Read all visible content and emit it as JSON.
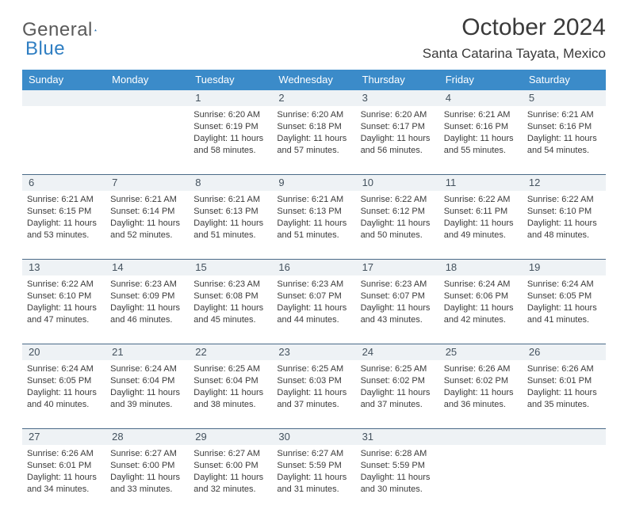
{
  "brand": {
    "part1": "General",
    "part2": "Blue",
    "color1": "#5a5a5a",
    "color2": "#2f7ec2"
  },
  "title": "October 2024",
  "location": "Santa Catarina Tayata, Mexico",
  "header_bg": "#3b8bc9",
  "header_fg": "#ffffff",
  "daynum_bg": "#eef2f5",
  "rule_color": "#4a6a88",
  "day_names": [
    "Sunday",
    "Monday",
    "Tuesday",
    "Wednesday",
    "Thursday",
    "Friday",
    "Saturday"
  ],
  "weeks": [
    {
      "nums": [
        "",
        "",
        "1",
        "2",
        "3",
        "4",
        "5"
      ],
      "cells": [
        null,
        null,
        {
          "sunrise": "Sunrise: 6:20 AM",
          "sunset": "Sunset: 6:19 PM",
          "daylight": "Daylight: 11 hours and 58 minutes."
        },
        {
          "sunrise": "Sunrise: 6:20 AM",
          "sunset": "Sunset: 6:18 PM",
          "daylight": "Daylight: 11 hours and 57 minutes."
        },
        {
          "sunrise": "Sunrise: 6:20 AM",
          "sunset": "Sunset: 6:17 PM",
          "daylight": "Daylight: 11 hours and 56 minutes."
        },
        {
          "sunrise": "Sunrise: 6:21 AM",
          "sunset": "Sunset: 6:16 PM",
          "daylight": "Daylight: 11 hours and 55 minutes."
        },
        {
          "sunrise": "Sunrise: 6:21 AM",
          "sunset": "Sunset: 6:16 PM",
          "daylight": "Daylight: 11 hours and 54 minutes."
        }
      ]
    },
    {
      "nums": [
        "6",
        "7",
        "8",
        "9",
        "10",
        "11",
        "12"
      ],
      "cells": [
        {
          "sunrise": "Sunrise: 6:21 AM",
          "sunset": "Sunset: 6:15 PM",
          "daylight": "Daylight: 11 hours and 53 minutes."
        },
        {
          "sunrise": "Sunrise: 6:21 AM",
          "sunset": "Sunset: 6:14 PM",
          "daylight": "Daylight: 11 hours and 52 minutes."
        },
        {
          "sunrise": "Sunrise: 6:21 AM",
          "sunset": "Sunset: 6:13 PM",
          "daylight": "Daylight: 11 hours and 51 minutes."
        },
        {
          "sunrise": "Sunrise: 6:21 AM",
          "sunset": "Sunset: 6:13 PM",
          "daylight": "Daylight: 11 hours and 51 minutes."
        },
        {
          "sunrise": "Sunrise: 6:22 AM",
          "sunset": "Sunset: 6:12 PM",
          "daylight": "Daylight: 11 hours and 50 minutes."
        },
        {
          "sunrise": "Sunrise: 6:22 AM",
          "sunset": "Sunset: 6:11 PM",
          "daylight": "Daylight: 11 hours and 49 minutes."
        },
        {
          "sunrise": "Sunrise: 6:22 AM",
          "sunset": "Sunset: 6:10 PM",
          "daylight": "Daylight: 11 hours and 48 minutes."
        }
      ]
    },
    {
      "nums": [
        "13",
        "14",
        "15",
        "16",
        "17",
        "18",
        "19"
      ],
      "cells": [
        {
          "sunrise": "Sunrise: 6:22 AM",
          "sunset": "Sunset: 6:10 PM",
          "daylight": "Daylight: 11 hours and 47 minutes."
        },
        {
          "sunrise": "Sunrise: 6:23 AM",
          "sunset": "Sunset: 6:09 PM",
          "daylight": "Daylight: 11 hours and 46 minutes."
        },
        {
          "sunrise": "Sunrise: 6:23 AM",
          "sunset": "Sunset: 6:08 PM",
          "daylight": "Daylight: 11 hours and 45 minutes."
        },
        {
          "sunrise": "Sunrise: 6:23 AM",
          "sunset": "Sunset: 6:07 PM",
          "daylight": "Daylight: 11 hours and 44 minutes."
        },
        {
          "sunrise": "Sunrise: 6:23 AM",
          "sunset": "Sunset: 6:07 PM",
          "daylight": "Daylight: 11 hours and 43 minutes."
        },
        {
          "sunrise": "Sunrise: 6:24 AM",
          "sunset": "Sunset: 6:06 PM",
          "daylight": "Daylight: 11 hours and 42 minutes."
        },
        {
          "sunrise": "Sunrise: 6:24 AM",
          "sunset": "Sunset: 6:05 PM",
          "daylight": "Daylight: 11 hours and 41 minutes."
        }
      ]
    },
    {
      "nums": [
        "20",
        "21",
        "22",
        "23",
        "24",
        "25",
        "26"
      ],
      "cells": [
        {
          "sunrise": "Sunrise: 6:24 AM",
          "sunset": "Sunset: 6:05 PM",
          "daylight": "Daylight: 11 hours and 40 minutes."
        },
        {
          "sunrise": "Sunrise: 6:24 AM",
          "sunset": "Sunset: 6:04 PM",
          "daylight": "Daylight: 11 hours and 39 minutes."
        },
        {
          "sunrise": "Sunrise: 6:25 AM",
          "sunset": "Sunset: 6:04 PM",
          "daylight": "Daylight: 11 hours and 38 minutes."
        },
        {
          "sunrise": "Sunrise: 6:25 AM",
          "sunset": "Sunset: 6:03 PM",
          "daylight": "Daylight: 11 hours and 37 minutes."
        },
        {
          "sunrise": "Sunrise: 6:25 AM",
          "sunset": "Sunset: 6:02 PM",
          "daylight": "Daylight: 11 hours and 37 minutes."
        },
        {
          "sunrise": "Sunrise: 6:26 AM",
          "sunset": "Sunset: 6:02 PM",
          "daylight": "Daylight: 11 hours and 36 minutes."
        },
        {
          "sunrise": "Sunrise: 6:26 AM",
          "sunset": "Sunset: 6:01 PM",
          "daylight": "Daylight: 11 hours and 35 minutes."
        }
      ]
    },
    {
      "nums": [
        "27",
        "28",
        "29",
        "30",
        "31",
        "",
        ""
      ],
      "cells": [
        {
          "sunrise": "Sunrise: 6:26 AM",
          "sunset": "Sunset: 6:01 PM",
          "daylight": "Daylight: 11 hours and 34 minutes."
        },
        {
          "sunrise": "Sunrise: 6:27 AM",
          "sunset": "Sunset: 6:00 PM",
          "daylight": "Daylight: 11 hours and 33 minutes."
        },
        {
          "sunrise": "Sunrise: 6:27 AM",
          "sunset": "Sunset: 6:00 PM",
          "daylight": "Daylight: 11 hours and 32 minutes."
        },
        {
          "sunrise": "Sunrise: 6:27 AM",
          "sunset": "Sunset: 5:59 PM",
          "daylight": "Daylight: 11 hours and 31 minutes."
        },
        {
          "sunrise": "Sunrise: 6:28 AM",
          "sunset": "Sunset: 5:59 PM",
          "daylight": "Daylight: 11 hours and 30 minutes."
        },
        null,
        null
      ]
    }
  ]
}
